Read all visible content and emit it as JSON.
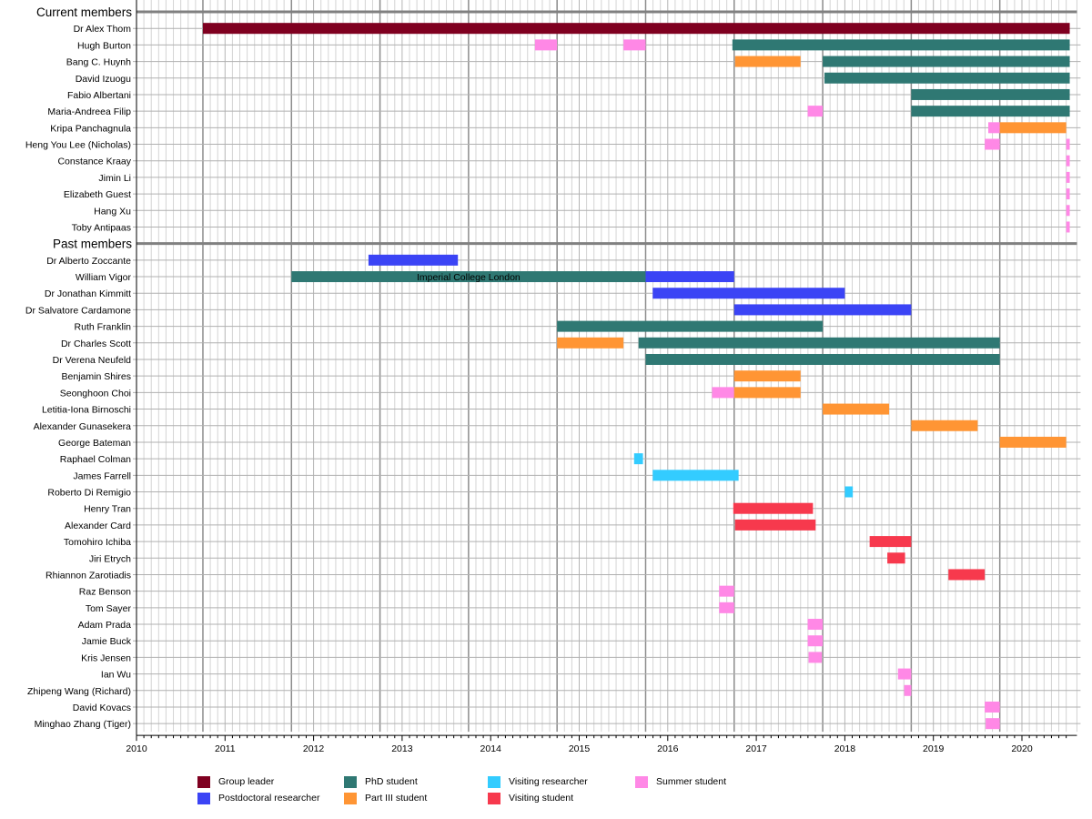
{
  "chart_data": {
    "type": "gantt",
    "title": "",
    "xlabel": "",
    "ylabel": "",
    "xlim": [
      2010.0,
      2020.58
    ],
    "x_ticks": [
      "2010",
      "2011",
      "2012",
      "2013",
      "2014",
      "2015",
      "2016",
      "2017",
      "2018",
      "2019",
      "2020"
    ],
    "grid": "on (monthly minor, yearly October major)",
    "legend_position": "bottom",
    "roles": {
      "group_leader": {
        "label": "Group leader",
        "color": "#7f0020"
      },
      "postdoc": {
        "label": "Postdoctoral researcher",
        "color": "#3b44f5"
      },
      "phd": {
        "label": "PhD student",
        "color": "#2f7873"
      },
      "part3": {
        "label": "Part III student",
        "color": "#ff9534"
      },
      "visiting_researcher": {
        "label": "Visiting researcher",
        "color": "#33ccff"
      },
      "visiting_student": {
        "label": "Visiting student",
        "color": "#f7394d"
      },
      "summer": {
        "label": "Summer student",
        "color": "#ff88e6"
      }
    },
    "legend_order": [
      "group_leader",
      "postdoc",
      "phd",
      "part3",
      "visiting_researcher",
      "visiting_student",
      "summer"
    ],
    "sections": [
      {
        "title": "Current members",
        "members": [
          {
            "name": "Dr Alex Thom",
            "bars": [
              {
                "role": "group_leader",
                "start": 2010.75,
                "end": 2020.54
              }
            ]
          },
          {
            "name": "Hugh Burton",
            "bars": [
              {
                "role": "summer",
                "start": 2014.5,
                "end": 2014.75
              },
              {
                "role": "summer",
                "start": 2015.5,
                "end": 2015.75
              },
              {
                "role": "phd",
                "start": 2016.73,
                "end": 2020.54
              }
            ]
          },
          {
            "name": "Bang C. Huynh",
            "bars": [
              {
                "role": "part3",
                "start": 2016.76,
                "end": 2017.5
              },
              {
                "role": "phd",
                "start": 2017.75,
                "end": 2020.54
              }
            ]
          },
          {
            "name": "David Izuogu",
            "bars": [
              {
                "role": "phd",
                "start": 2017.77,
                "end": 2020.54
              }
            ]
          },
          {
            "name": "Fabio Albertani",
            "bars": [
              {
                "role": "phd",
                "start": 2018.75,
                "end": 2020.54
              }
            ]
          },
          {
            "name": "Maria-Andreea Filip",
            "bars": [
              {
                "role": "summer",
                "start": 2017.58,
                "end": 2017.75
              },
              {
                "role": "phd",
                "start": 2018.75,
                "end": 2020.54
              }
            ]
          },
          {
            "name": "Kripa Panchagnula",
            "bars": [
              {
                "role": "summer",
                "start": 2019.62,
                "end": 2019.75
              },
              {
                "role": "part3",
                "start": 2019.75,
                "end": 2020.5
              }
            ]
          },
          {
            "name": "Heng You Lee (Nicholas)",
            "bars": [
              {
                "role": "summer",
                "start": 2019.58,
                "end": 2019.75
              },
              {
                "role": "summer",
                "start": 2020.5,
                "end": 2020.54
              }
            ]
          },
          {
            "name": "Constance Kraay",
            "bars": [
              {
                "role": "summer",
                "start": 2020.5,
                "end": 2020.54
              }
            ]
          },
          {
            "name": "Jimin Li",
            "bars": [
              {
                "role": "summer",
                "start": 2020.5,
                "end": 2020.54
              }
            ]
          },
          {
            "name": "Elizabeth Guest",
            "bars": [
              {
                "role": "summer",
                "start": 2020.5,
                "end": 2020.54
              }
            ]
          },
          {
            "name": "Hang Xu",
            "bars": [
              {
                "role": "summer",
                "start": 2020.5,
                "end": 2020.54
              }
            ]
          },
          {
            "name": "Toby Antipaas",
            "bars": [
              {
                "role": "summer",
                "start": 2020.5,
                "end": 2020.54
              }
            ]
          }
        ]
      },
      {
        "title": "Past members",
        "members": [
          {
            "name": "Dr Alberto Zoccante",
            "bars": [
              {
                "role": "postdoc",
                "start": 2012.62,
                "end": 2013.63
              }
            ]
          },
          {
            "name": "William Vigor",
            "bars": [
              {
                "role": "phd",
                "start": 2011.75,
                "end": 2015.75,
                "label": "Imperial College London"
              },
              {
                "role": "postdoc",
                "start": 2015.75,
                "end": 2016.75
              }
            ]
          },
          {
            "name": "Dr Jonathan Kimmitt",
            "bars": [
              {
                "role": "postdoc",
                "start": 2015.83,
                "end": 2018.0
              }
            ]
          },
          {
            "name": "Dr Salvatore Cardamone",
            "bars": [
              {
                "role": "postdoc",
                "start": 2016.75,
                "end": 2018.75
              }
            ]
          },
          {
            "name": "Ruth Franklin",
            "bars": [
              {
                "role": "phd",
                "start": 2014.75,
                "end": 2017.75
              }
            ]
          },
          {
            "name": "Dr Charles Scott",
            "bars": [
              {
                "role": "part3",
                "start": 2014.75,
                "end": 2015.5
              },
              {
                "role": "phd",
                "start": 2015.67,
                "end": 2019.75
              }
            ]
          },
          {
            "name": "Dr Verena Neufeld",
            "bars": [
              {
                "role": "phd",
                "start": 2015.75,
                "end": 2019.75
              }
            ]
          },
          {
            "name": "Benjamin Shires",
            "bars": [
              {
                "role": "part3",
                "start": 2016.75,
                "end": 2017.5
              }
            ]
          },
          {
            "name": "Seonghoon Choi",
            "bars": [
              {
                "role": "summer",
                "start": 2016.5,
                "end": 2016.75
              },
              {
                "role": "part3",
                "start": 2016.75,
                "end": 2017.5
              }
            ]
          },
          {
            "name": "Letitia-Iona Birnoschi",
            "bars": [
              {
                "role": "part3",
                "start": 2017.75,
                "end": 2018.5
              }
            ]
          },
          {
            "name": "Alexander Gunasekera",
            "bars": [
              {
                "role": "part3",
                "start": 2018.75,
                "end": 2019.5
              }
            ]
          },
          {
            "name": "George Bateman",
            "bars": [
              {
                "role": "part3",
                "start": 2019.75,
                "end": 2020.5
              }
            ]
          },
          {
            "name": "Raphael Colman",
            "bars": [
              {
                "role": "visiting_researcher",
                "start": 2015.62,
                "end": 2015.72
              }
            ]
          },
          {
            "name": "James Farrell",
            "bars": [
              {
                "role": "visiting_researcher",
                "start": 2015.83,
                "end": 2016.8
              }
            ]
          },
          {
            "name": "Roberto Di Remigio",
            "bars": [
              {
                "role": "visiting_researcher",
                "start": 2018.0,
                "end": 2018.09
              }
            ]
          },
          {
            "name": "Henry Tran",
            "bars": [
              {
                "role": "visiting_student",
                "start": 2016.74,
                "end": 2017.64
              }
            ]
          },
          {
            "name": "Alexander Card",
            "bars": [
              {
                "role": "visiting_student",
                "start": 2016.76,
                "end": 2017.67
              }
            ]
          },
          {
            "name": "Tomohiro Ichiba",
            "bars": [
              {
                "role": "visiting_student",
                "start": 2018.28,
                "end": 2018.75
              }
            ]
          },
          {
            "name": "Jiri Etrych",
            "bars": [
              {
                "role": "visiting_student",
                "start": 2018.48,
                "end": 2018.68
              }
            ]
          },
          {
            "name": "Rhiannon Zarotiadis",
            "bars": [
              {
                "role": "visiting_student",
                "start": 2019.17,
                "end": 2019.58
              }
            ]
          },
          {
            "name": "Raz Benson",
            "bars": [
              {
                "role": "summer",
                "start": 2016.58,
                "end": 2016.75
              }
            ]
          },
          {
            "name": "Tom Sayer",
            "bars": [
              {
                "role": "summer",
                "start": 2016.58,
                "end": 2016.75
              }
            ]
          },
          {
            "name": "Adam Prada",
            "bars": [
              {
                "role": "summer",
                "start": 2017.58,
                "end": 2017.75
              }
            ]
          },
          {
            "name": "Jamie Buck",
            "bars": [
              {
                "role": "summer",
                "start": 2017.58,
                "end": 2017.75
              }
            ]
          },
          {
            "name": "Kris Jensen",
            "bars": [
              {
                "role": "summer",
                "start": 2017.59,
                "end": 2017.74
              }
            ]
          },
          {
            "name": "Ian Wu",
            "bars": [
              {
                "role": "summer",
                "start": 2018.6,
                "end": 2018.75
              }
            ]
          },
          {
            "name": "Zhipeng Wang (Richard)",
            "bars": [
              {
                "role": "summer",
                "start": 2018.67,
                "end": 2018.75
              }
            ]
          },
          {
            "name": "David Kovacs",
            "bars": [
              {
                "role": "summer",
                "start": 2019.58,
                "end": 2019.75
              }
            ]
          },
          {
            "name": "Minghao Zhang (Tiger)",
            "bars": [
              {
                "role": "summer",
                "start": 2019.59,
                "end": 2019.75
              }
            ]
          }
        ]
      }
    ]
  }
}
